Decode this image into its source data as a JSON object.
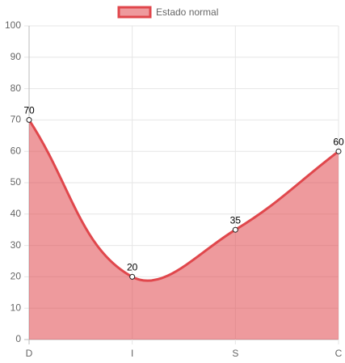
{
  "chart_data": {
    "type": "line",
    "categories": [
      "D",
      "I",
      "S",
      "C"
    ],
    "series": [
      {
        "name": "Estado normal",
        "color": "#e0474c",
        "values": [
          70,
          20,
          35,
          60
        ]
      }
    ],
    "ylim": [
      0,
      100
    ],
    "yticks": [
      0,
      10,
      20,
      30,
      40,
      50,
      60,
      70,
      80,
      90,
      100
    ],
    "grid": true,
    "legend": "top",
    "fill": true,
    "smooth": true
  }
}
